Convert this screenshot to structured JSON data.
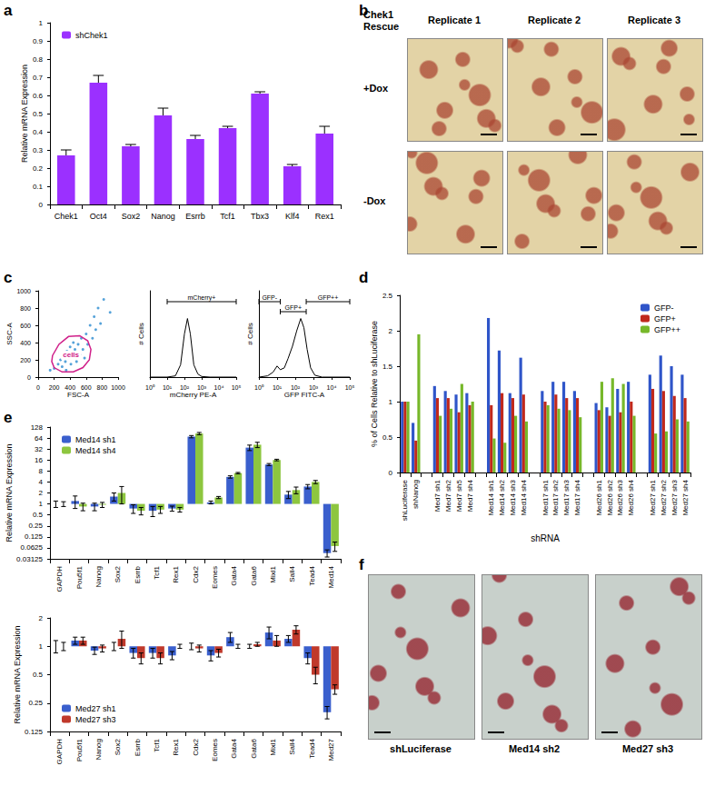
{
  "chart_data": [
    {
      "panel": "a",
      "type": "bar",
      "y_label": "Relative mRNA Expression",
      "categories": [
        "Chek1",
        "Oct4",
        "Sox2",
        "Nanog",
        "Esrrb",
        "Tcf1",
        "Tbx3",
        "Klf4",
        "Rex1"
      ],
      "series": [
        {
          "name": "shChek1",
          "color": "#9b30ff",
          "values": [
            0.27,
            0.67,
            0.32,
            0.49,
            0.36,
            0.42,
            0.61,
            0.21,
            0.39
          ],
          "errors": [
            0.03,
            0.04,
            0.01,
            0.04,
            0.02,
            0.01,
            0.01,
            0.01,
            0.04
          ]
        }
      ],
      "ylim": [
        0,
        1
      ],
      "yticks": [
        0,
        0.1,
        0.2,
        0.3,
        0.4,
        0.5,
        0.6,
        0.7,
        0.8,
        0.9,
        1
      ],
      "grid": false,
      "legend": "upper left"
    },
    {
      "panel": "c",
      "type": "scatter",
      "x_label": "FSC-A",
      "y_label": "SSC-A",
      "color": "#2a8bd0",
      "x": [
        250,
        280,
        300,
        320,
        340,
        360,
        380,
        400,
        410,
        420,
        440,
        450,
        460,
        480,
        500,
        520,
        540,
        560,
        580,
        600,
        620,
        650,
        680,
        700,
        720,
        750,
        780,
        820,
        150,
        200,
        350,
        900
      ],
      "y": [
        150,
        200,
        120,
        260,
        180,
        300,
        220,
        350,
        150,
        280,
        400,
        230,
        320,
        180,
        380,
        260,
        450,
        320,
        220,
        500,
        380,
        600,
        450,
        700,
        550,
        800,
        620,
        900,
        80,
        100,
        80,
        750
      ],
      "gates": [
        {
          "label": "cells",
          "x": [
            180,
            260,
            380,
            520,
            620,
            660,
            640,
            560,
            440,
            300,
            200,
            170
          ],
          "y": [
            250,
            380,
            470,
            480,
            420,
            320,
            200,
            110,
            60,
            60,
            110,
            180
          ]
        }
      ],
      "xlim": [
        0,
        1000
      ],
      "xticks": [
        0,
        200,
        400,
        600,
        800,
        1000
      ],
      "ylim": [
        0,
        1000
      ],
      "yticks": [
        0,
        200,
        400,
        600,
        800,
        1000
      ],
      "grid": false
    },
    {
      "type": "line",
      "x_label": "mCherry PE-A",
      "y_label": "# Cells",
      "color": "#000000",
      "log": "x",
      "x": [
        1,
        10,
        30,
        60,
        100,
        150,
        220,
        350,
        600,
        1000,
        3000,
        100000
      ],
      "values": [
        0,
        0,
        2,
        20,
        70,
        95,
        70,
        20,
        5,
        1,
        0,
        0
      ],
      "gates": [
        {
          "label": "mCherry+",
          "from": 10,
          "to": 100000
        }
      ],
      "xlim": [
        1,
        100000
      ],
      "xticks": [
        {
          "value": 1,
          "label": "10⁰"
        },
        {
          "value": 10,
          "label": "10¹"
        },
        {
          "value": 100,
          "label": "10²"
        },
        {
          "value": 1000,
          "label": "10³"
        },
        {
          "value": 10000,
          "label": "10⁴"
        },
        {
          "value": 100000,
          "label": "10⁵"
        }
      ],
      "ylim": [
        0,
        140
      ],
      "tick_labels": "x",
      "grid": false
    },
    {
      "type": "line",
      "x_label": "GFP FITC-A",
      "y_label": "# Cells",
      "color": "#000000",
      "log": "x",
      "x": [
        1,
        3,
        6,
        10,
        15,
        25,
        40,
        70,
        120,
        200,
        300,
        450,
        700,
        1200,
        3000,
        100000
      ],
      "values": [
        0,
        2,
        8,
        18,
        12,
        15,
        30,
        50,
        75,
        95,
        80,
        45,
        15,
        3,
        0,
        0
      ],
      "gates": [
        {
          "label": "GFP-",
          "from": 1,
          "to": 15
        },
        {
          "label": "GFP+",
          "from": 15,
          "to": 400
        },
        {
          "label": "GFP++",
          "from": 400,
          "to": 100000
        }
      ],
      "xlim": [
        1,
        100000
      ],
      "xticks": [
        {
          "value": 1,
          "label": "10⁰"
        },
        {
          "value": 10,
          "label": "10¹"
        },
        {
          "value": 100,
          "label": "10²"
        },
        {
          "value": 1000,
          "label": "10³"
        },
        {
          "value": 10000,
          "label": "10⁴"
        },
        {
          "value": 100000,
          "label": "10⁵"
        }
      ],
      "ylim": [
        0,
        140
      ],
      "tick_labels": "x",
      "grid": false
    },
    {
      "panel": "d",
      "type": "bar",
      "x_label": "shRNA",
      "y_label": "% of Cells Relative to shLuciferase",
      "categories": [
        "shLuciferase",
        "shNanog",
        null,
        "Med7 sh1",
        "Med7 sh2",
        "Med7 sh5",
        "Med7 sh4",
        null,
        "Med14 sh1",
        "Med14 sh2",
        "Med14 sh3",
        "Med14 sh4",
        null,
        "Med17 sh1",
        "Med17 sh2",
        "Med17 sh3",
        "Med17 sh4",
        null,
        "Med26 sh1",
        "Med26 sh2",
        "Med26 sh3",
        "Med26 sh4",
        null,
        "Med27 sh1",
        "Med27 sh2",
        "Med27 sh3",
        "Med27 sh4"
      ],
      "series": [
        {
          "name": "GFP-",
          "color": "#2f55c9",
          "values": [
            1,
            0.7,
            null,
            1.22,
            1.15,
            1.1,
            1.12,
            null,
            2.18,
            1.72,
            1.12,
            1.62,
            null,
            1.15,
            1.28,
            1.28,
            1.15,
            null,
            0.98,
            0.92,
            1.18,
            1.28,
            null,
            1.38,
            1.65,
            1.5,
            1.38
          ]
        },
        {
          "name": "GFP+",
          "color": "#c0281c",
          "values": [
            1,
            0.45,
            null,
            1.05,
            1.05,
            0.85,
            0.95,
            null,
            0.95,
            1.12,
            1.05,
            1.1,
            null,
            1.0,
            1.1,
            1.05,
            1.05,
            null,
            0.88,
            0.8,
            0.85,
            1.0,
            null,
            1.18,
            1.15,
            1.08,
            1.05
          ]
        },
        {
          "name": "GFP++",
          "color": "#77b82a",
          "values": [
            1,
            1.95,
            null,
            0.8,
            0.9,
            1.25,
            1.0,
            null,
            0.48,
            0.42,
            0.8,
            0.72,
            null,
            0.95,
            0.9,
            0.88,
            0.78,
            null,
            1.28,
            1.33,
            1.25,
            0.8,
            null,
            0.55,
            0.58,
            0.75,
            0.72
          ]
        }
      ],
      "ylim": [
        0,
        2.5
      ],
      "yticks": [
        0,
        0.5,
        1,
        1.5,
        2,
        2.5
      ],
      "grid": false,
      "legend": "upper right"
    },
    {
      "panel": "e",
      "type": "bar",
      "log": "y",
      "y_label": "Relative mRNA Expression",
      "categories": [
        "GAPDH",
        "Pou5f1",
        "Nanog",
        "Sox2",
        "Esrrb",
        "Tcf1",
        "Rex1",
        "Cdx2",
        "Eomes",
        "Gata4",
        "Gata6",
        "Mixl1",
        "Sall4",
        "Tead4",
        "Med14"
      ],
      "series": [
        {
          "name": "Med14 sh1",
          "color": "#3a5fcd",
          "values": [
            1.0,
            1.2,
            0.85,
            1.6,
            0.75,
            0.65,
            0.75,
            70,
            1.1,
            5.5,
            35,
            12,
            1.8,
            3,
            0.045
          ],
          "errors": [
            0.2,
            0.45,
            0.2,
            0.4,
            0.2,
            0.2,
            0.12,
            5,
            0.1,
            0.4,
            6,
            0.8,
            0.4,
            0.4,
            0.01
          ]
        },
        {
          "name": "Med14 sh4",
          "color": "#8dc63f",
          "values": [
            1.0,
            0.85,
            0.95,
            2.0,
            0.65,
            0.7,
            0.7,
            85,
            1.5,
            7.0,
            42,
            16,
            2.4,
            4,
            0.07
          ],
          "errors": [
            0.15,
            0.2,
            0.15,
            1.0,
            0.15,
            0.15,
            0.1,
            6,
            0.1,
            0.3,
            7,
            0.8,
            0.5,
            0.4,
            0.02
          ]
        }
      ],
      "ylim": [
        0.03125,
        128
      ],
      "yticks": [
        128,
        64,
        32,
        16,
        8,
        4,
        2,
        1,
        0.5,
        0.25,
        0.125,
        0.0625,
        0.03125
      ],
      "grid": false,
      "legend": "upper left"
    },
    {
      "type": "bar",
      "log": "y",
      "y_label": "Relative mRNA Expression",
      "categories": [
        "GAPDH",
        "Pou5f1",
        "Nanog",
        "Sox2",
        "Esrrb",
        "Tcf1",
        "Rex1",
        "Cdx2",
        "Eomes",
        "Gata4",
        "Gata6",
        "Mixl1",
        "Sall4",
        "Tead4",
        "Med27"
      ],
      "series": [
        {
          "name": "Med27 sh1",
          "color": "#3a5fcd",
          "values": [
            1.0,
            1.15,
            0.9,
            1.0,
            0.85,
            0.85,
            0.8,
            1.0,
            0.8,
            1.25,
            1.0,
            1.4,
            1.2,
            0.75,
            0.2
          ],
          "errors": [
            0.15,
            0.1,
            0.08,
            0.1,
            0.1,
            0.1,
            0.08,
            0.08,
            0.1,
            0.15,
            0.05,
            0.2,
            0.1,
            0.1,
            0.03
          ]
        },
        {
          "name": "Med27 sh3",
          "color": "#c0392b",
          "values": [
            1.0,
            1.15,
            0.95,
            1.2,
            0.75,
            0.75,
            1.0,
            0.95,
            0.85,
            1.0,
            1.05,
            1.15,
            1.5,
            0.5,
            0.35
          ],
          "errors": [
            0.1,
            0.1,
            0.08,
            0.25,
            0.1,
            0.1,
            0.05,
            0.08,
            0.08,
            0.05,
            0.05,
            0.15,
            0.15,
            0.1,
            0.04
          ]
        }
      ],
      "ylim": [
        0.125,
        2
      ],
      "yticks": [
        0.125,
        0.25,
        0.5,
        1,
        2
      ],
      "grid": false,
      "legend": "lower left"
    }
  ],
  "images": [
    {
      "panel": "b",
      "title": "Chek1 Rescue",
      "columns": [
        "Replicate 1",
        "Replicate 2",
        "Replicate 3"
      ],
      "rows": [
        "+Dox",
        "-Dox"
      ]
    },
    {
      "panel": "f",
      "captions": [
        "shLuciferase",
        "Med14 sh2",
        "Med27 sh3"
      ]
    }
  ]
}
